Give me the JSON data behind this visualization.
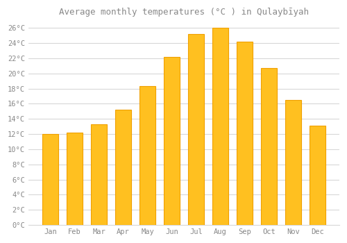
{
  "title": "Average monthly temperatures (°C ) in Qulaybīyah",
  "months": [
    "Jan",
    "Feb",
    "Mar",
    "Apr",
    "May",
    "Jun",
    "Jul",
    "Aug",
    "Sep",
    "Oct",
    "Nov",
    "Dec"
  ],
  "values": [
    12,
    12.2,
    13.3,
    15.2,
    18.3,
    22.2,
    25.2,
    26,
    24.2,
    20.7,
    16.5,
    13.1
  ],
  "bar_color_top": "#FFC020",
  "bar_color_bottom": "#FFA020",
  "bar_edge_color": "#F0A000",
  "background_color": "#ffffff",
  "grid_color": "#d8d8d8",
  "text_color": "#888888",
  "ylim": [
    0,
    27
  ],
  "ytick_step": 2,
  "title_fontsize": 9,
  "tick_fontsize": 7.5
}
